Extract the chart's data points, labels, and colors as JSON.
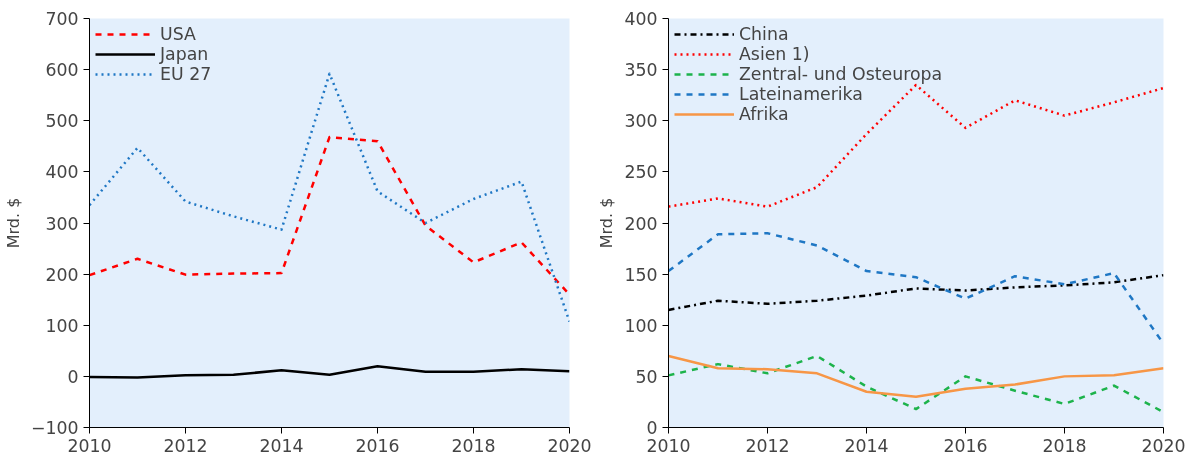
{
  "chart_data": [
    {
      "type": "line",
      "ylabel": "Mrd. $",
      "x": [
        2010,
        2011,
        2012,
        2013,
        2014,
        2015,
        2016,
        2017,
        2018,
        2019,
        2020
      ],
      "xlim": [
        2010,
        2020
      ],
      "xticks": [
        2010,
        2012,
        2014,
        2016,
        2018,
        2020
      ],
      "ylim": [
        -100,
        700
      ],
      "yticks": [
        -100,
        0,
        100,
        200,
        300,
        400,
        500,
        600,
        700
      ],
      "grid": false,
      "legend": "top left",
      "marker": "none",
      "series": [
        {
          "name": "USA",
          "color": "#ff0000",
          "line_style": "dashed",
          "values": [
            198,
            230,
            199,
            201,
            202,
            468,
            460,
            295,
            223,
            262,
            160
          ]
        },
        {
          "name": "Japan",
          "color": "#000000",
          "line_style": "solid",
          "values": [
            -1,
            -2,
            2,
            3,
            12,
            3,
            20,
            9,
            9,
            14,
            10
          ]
        },
        {
          "name": "EU 27",
          "color": "#1f77c4",
          "line_style": "dotted",
          "values": [
            335,
            447,
            342,
            313,
            287,
            592,
            362,
            300,
            347,
            381,
            107
          ]
        }
      ]
    },
    {
      "type": "line",
      "ylabel": "Mrd. $",
      "x": [
        2010,
        2011,
        2012,
        2013,
        2014,
        2015,
        2016,
        2017,
        2018,
        2019,
        2020
      ],
      "xlim": [
        2010,
        2020
      ],
      "xticks": [
        2010,
        2012,
        2014,
        2016,
        2018,
        2020
      ],
      "ylim": [
        0,
        400
      ],
      "yticks": [
        0,
        50,
        100,
        150,
        200,
        250,
        300,
        350,
        400
      ],
      "grid": false,
      "legend": "top left",
      "marker": "none",
      "series": [
        {
          "name": "China",
          "color": "#000000",
          "line_style": "dashdot",
          "values": [
            115,
            124,
            121,
            124,
            129,
            136,
            134,
            137,
            139,
            142,
            149
          ]
        },
        {
          "name": "Asien 1)",
          "color": "#ff0000",
          "line_style": "dotted",
          "values": [
            216,
            224,
            216,
            235,
            287,
            335,
            293,
            320,
            305,
            318,
            332
          ]
        },
        {
          "name": "Zentral- und Osteuropa",
          "color": "#1db34b",
          "line_style": "dashed",
          "values": [
            51,
            62,
            53,
            70,
            40,
            18,
            50,
            36,
            23,
            41,
            15
          ]
        },
        {
          "name": "Lateinamerika",
          "color": "#1f77c4",
          "line_style": "dashed",
          "values": [
            153,
            189,
            190,
            178,
            153,
            147,
            126,
            148,
            140,
            151,
            82
          ]
        },
        {
          "name": "Afrika",
          "color": "#f79646",
          "line_style": "solid",
          "values": [
            70,
            58,
            57,
            53,
            35,
            30,
            38,
            42,
            50,
            51,
            58
          ]
        }
      ]
    }
  ]
}
